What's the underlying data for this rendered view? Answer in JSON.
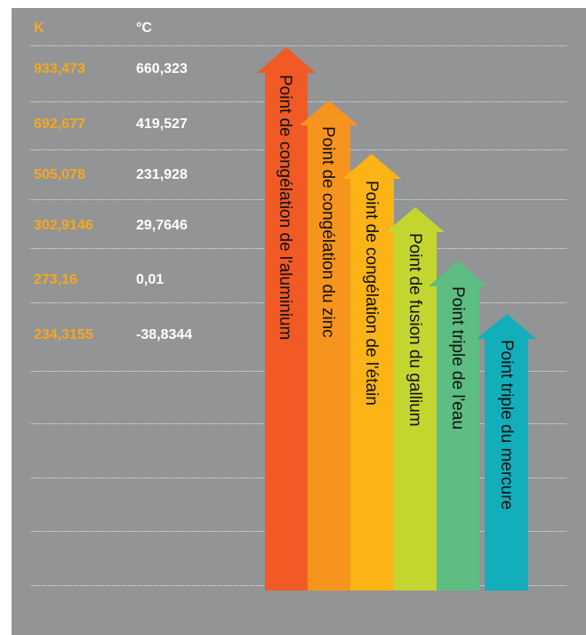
{
  "headers": {
    "kelvin": "K",
    "celsius": "°C"
  },
  "rows": [
    {
      "k": "933,473",
      "c": "660,323"
    },
    {
      "k": "692,677",
      "c": "419,527"
    },
    {
      "k": "505,078",
      "c": "231,928"
    },
    {
      "k": "302,9146",
      "c": "29,7646"
    },
    {
      "k": "273,16",
      "c": "0,01"
    },
    {
      "k": "234,3155",
      "c": "-38,8344"
    }
  ],
  "arrows": [
    {
      "label": "Point de congélation de l'aluminium",
      "color": "#f15a24"
    },
    {
      "label": "Point de congélation du zinc",
      "color": "#f7941e"
    },
    {
      "label": "Point de congélation de l'étain",
      "color": "#fbb316"
    },
    {
      "label": "Point de fusion du gallium",
      "color": "#c3d630"
    },
    {
      "label": "Point triple de l'eau",
      "color": "#5dbd83"
    },
    {
      "label": "Point triple du mercure",
      "color": "#12aebb"
    }
  ],
  "colors": {
    "background": "#939495",
    "kelvin_text": "#f6a81c",
    "celsius_text": "#ffffff"
  }
}
